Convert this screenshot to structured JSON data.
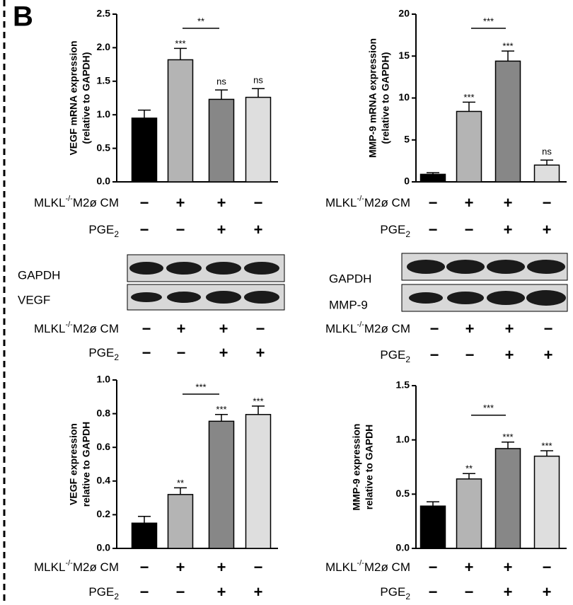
{
  "panel_label": "B",
  "conditions": [
    {
      "label": {
        "text": "MLKL",
        "sup": "-/-",
        "after": "M2ø CM"
      },
      "signs": [
        "−",
        "+",
        "+",
        "−"
      ]
    },
    {
      "label": {
        "text": "PGE",
        "sub": "2"
      },
      "signs": [
        "−",
        "−",
        "+",
        "+"
      ]
    }
  ],
  "blots": [
    {
      "labels": [
        "GAPDH",
        "VEGF"
      ]
    },
    {
      "labels": [
        "GAPDH",
        "MMP-9"
      ]
    }
  ],
  "chart_data": [
    {
      "type": "bar",
      "y_label": [
        "VEGF mRNA expression",
        "(relative to GAPDH)"
      ],
      "colors": [
        "#000000",
        "#b4b4b4",
        "#878787",
        "#dedede"
      ],
      "values": [
        0.95,
        1.82,
        1.23,
        1.26
      ],
      "errors": [
        0.12,
        0.17,
        0.14,
        0.13
      ],
      "annotations": [
        null,
        "***",
        "ns",
        "ns"
      ],
      "bracket": {
        "from": 1,
        "to": 2,
        "label": "**"
      },
      "ylim": [
        0,
        2.5
      ],
      "yticks": [
        {
          "value": 0,
          "label": "0.0"
        },
        0.5,
        {
          "value": 1,
          "label": "1.0"
        },
        1.5,
        {
          "value": 2,
          "label": "2.0"
        },
        2.5
      ]
    },
    {
      "type": "bar",
      "y_label": [
        "MMP-9 mRNA expression",
        "(relative to GAPDH)"
      ],
      "colors": [
        "#000000",
        "#b4b4b4",
        "#878787",
        "#dedede"
      ],
      "values": [
        0.9,
        8.4,
        14.4,
        2.0
      ],
      "errors": [
        0.2,
        1.1,
        1.2,
        0.6
      ],
      "annotations": [
        null,
        "***",
        "***",
        "ns"
      ],
      "bracket": {
        "from": 1,
        "to": 2,
        "label": "***"
      },
      "ylim": [
        0,
        20
      ],
      "yticks": [
        0,
        5,
        10,
        15,
        20
      ]
    },
    {
      "type": "bar",
      "y_label": [
        "VEGF  expression",
        "relative to GAPDH"
      ],
      "colors": [
        "#000000",
        "#b4b4b4",
        "#878787",
        "#dedede"
      ],
      "values": [
        0.15,
        0.32,
        0.755,
        0.795
      ],
      "errors": [
        0.04,
        0.04,
        0.04,
        0.05
      ],
      "annotations": [
        null,
        "**",
        "***",
        "***"
      ],
      "bracket": {
        "from": 1,
        "to": 2,
        "label": "***"
      },
      "ylim": [
        0,
        1
      ],
      "yticks": [
        {
          "value": 0,
          "label": "0.0"
        },
        0.2,
        0.4,
        0.6,
        0.8,
        {
          "value": 1,
          "label": "1.0"
        }
      ]
    },
    {
      "type": "bar",
      "y_label": [
        "MMP-9 expression",
        "relative to GAPDH"
      ],
      "colors": [
        "#000000",
        "#b4b4b4",
        "#878787",
        "#dedede"
      ],
      "values": [
        0.39,
        0.64,
        0.92,
        0.85
      ],
      "errors": [
        0.04,
        0.05,
        0.06,
        0.05
      ],
      "annotations": [
        null,
        "**",
        "***",
        "***"
      ],
      "bracket": {
        "from": 1,
        "to": 2,
        "label": "***"
      },
      "ylim": [
        0,
        1.5
      ],
      "yticks": [
        {
          "value": 0,
          "label": "0.0"
        },
        0.5,
        {
          "value": 1,
          "label": "1.0"
        },
        1.5
      ]
    }
  ]
}
